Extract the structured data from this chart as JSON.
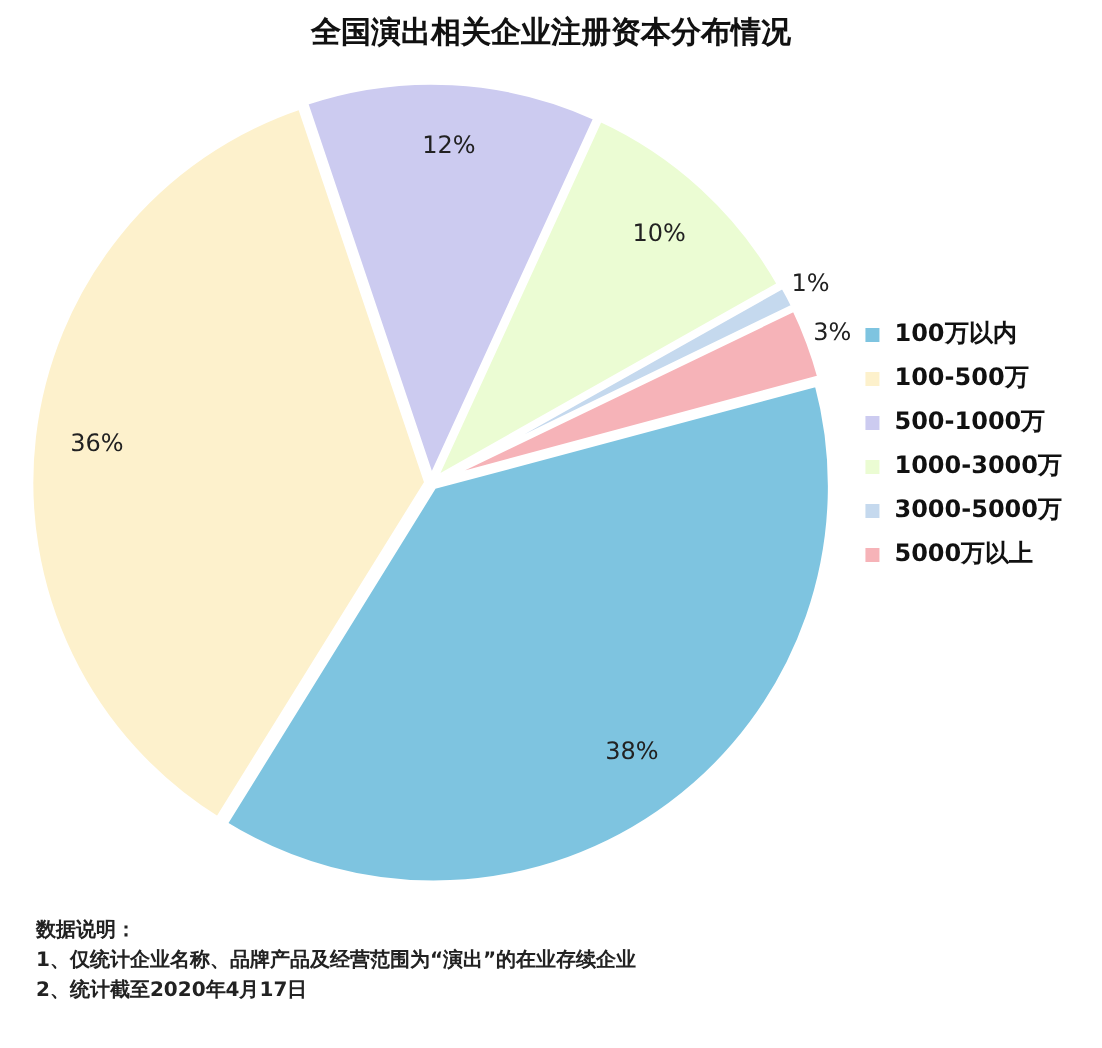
{
  "chart_data": {
    "type": "pie",
    "title": "全国演出相关企业注册资本分布情况",
    "categories": [
      "100万以内",
      "100-500万",
      "500-1000万",
      "1000-3000万",
      "3000-5000万",
      "5000万以上"
    ],
    "values": [
      38,
      36,
      12,
      10,
      1,
      3
    ],
    "colors": [
      "#7ec4e0",
      "#fdf1cc",
      "#cccbf0",
      "#ebfcd3",
      "#c5d9ee",
      "#f6b3b8"
    ],
    "value_labels": [
      "38%",
      "36%",
      "12%",
      "10%",
      "1%",
      "3%"
    ],
    "legend": "right",
    "annotations": [
      "数据说明：",
      "1、仅统计企业名称、品牌产品及经营范围为“演出”的在业存续企业",
      "2、统计截至2020年4月17日"
    ]
  }
}
